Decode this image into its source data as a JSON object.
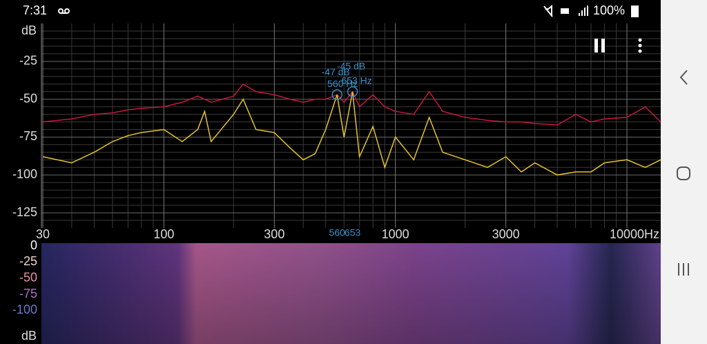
{
  "status_bar": {
    "time": "7:31",
    "battery": "100%"
  },
  "chart_data": {
    "type": "line",
    "log_x": true,
    "grid": true,
    "y_label": "dB",
    "xlim": [
      30,
      14000
    ],
    "ylim": [
      -135,
      0
    ],
    "xticks": [
      30,
      100,
      300,
      1000,
      3000,
      {
        "value": 10000,
        "label": "10000Hz"
      }
    ],
    "x_minor_ticks": [
      40,
      50,
      60,
      70,
      80,
      90,
      200,
      400,
      500,
      600,
      700,
      800,
      900,
      2000,
      4000,
      5000,
      6000,
      7000,
      8000,
      9000
    ],
    "yticks": [
      -25,
      -50,
      -75,
      -100,
      -125
    ],
    "y_minor_ticks": [
      -5,
      -10,
      -15,
      -20,
      -30,
      -35,
      -40,
      -45,
      -55,
      -60,
      -65,
      -70,
      -80,
      -85,
      -90,
      -95,
      -105,
      -110,
      -115,
      -120,
      -130
    ],
    "x": [
      30,
      40,
      50,
      60,
      70,
      80,
      100,
      120,
      140,
      150,
      160,
      200,
      220,
      250,
      300,
      350,
      400,
      450,
      500,
      560,
      600,
      653,
      700,
      800,
      900,
      1000,
      1200,
      1400,
      1600,
      2000,
      2500,
      3000,
      3500,
      4000,
      5000,
      6000,
      7000,
      8000,
      10000,
      12000,
      14000
    ],
    "series": [
      {
        "color": "#c8173e",
        "values": [
          -65,
          -63,
          -60,
          -59,
          -57,
          -56,
          -55,
          -52,
          -48,
          -50,
          -52,
          -48,
          -40,
          -45,
          -47,
          -50,
          -52,
          -50,
          -50,
          -47,
          -52,
          -45,
          -55,
          -47,
          -55,
          -58,
          -60,
          -45,
          -58,
          -62,
          -64,
          -65,
          -65,
          -66,
          -67,
          -60,
          -65,
          -63,
          -62,
          -55,
          -65
        ]
      },
      {
        "color": "#e6c52c",
        "values": [
          -88,
          -92,
          -85,
          -78,
          -74,
          -72,
          -70,
          -78,
          -70,
          -58,
          -78,
          -60,
          -50,
          -70,
          -72,
          -82,
          -90,
          -86,
          -70,
          -47,
          -75,
          -45,
          -88,
          -68,
          -95,
          -75,
          -90,
          -62,
          -85,
          -90,
          -95,
          -88,
          -98,
          -92,
          -100,
          -98,
          -98,
          -92,
          -90,
          -95,
          -90
        ]
      }
    ],
    "peaks": [
      {
        "freq": 560,
        "db": -47,
        "db_label": "-47 dB",
        "hz_label": "560 Hz",
        "axis_label": "560"
      },
      {
        "freq": 653,
        "db": -45,
        "db_label": "-45 dB",
        "hz_label": "653 Hz",
        "axis_label": "653"
      }
    ]
  },
  "spectrogram": {
    "ylim": [
      -120,
      0
    ],
    "yticks": [
      {
        "value": 0,
        "label": "0",
        "color": "#ffffff"
      },
      {
        "value": -25,
        "label": "-25",
        "color": "#f0d8c8"
      },
      {
        "value": -50,
        "label": "-50",
        "color": "#e890a8"
      },
      {
        "value": -75,
        "label": "-75",
        "color": "#b070c8"
      },
      {
        "value": -100,
        "label": "-100",
        "color": "#6c78c8"
      }
    ],
    "unit_label": "dB"
  }
}
